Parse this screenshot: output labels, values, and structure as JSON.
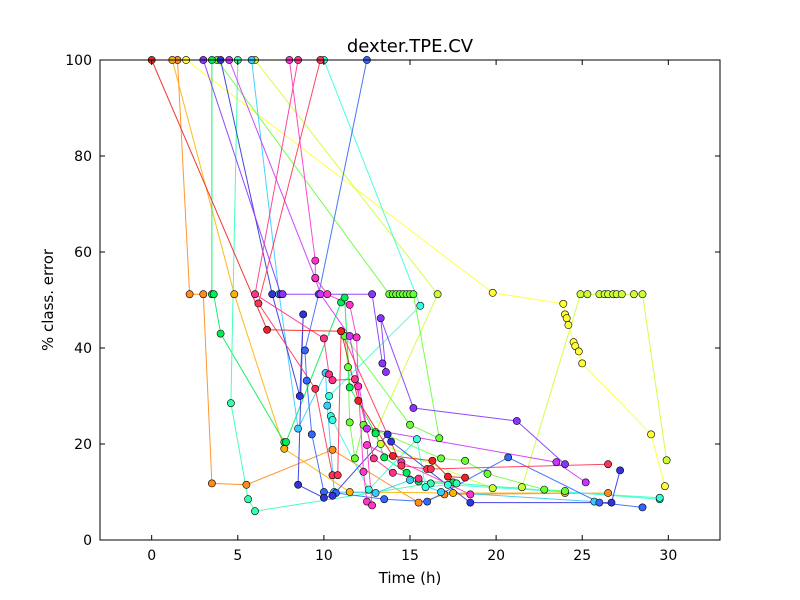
{
  "chart_data": {
    "type": "scatter",
    "title": "dexter.TPE.CV",
    "xlabel": "Time (h)",
    "ylabel": "% class. error",
    "xlim": [
      -3,
      33
    ],
    "ylim": [
      0,
      100
    ],
    "xticks": [
      0,
      5,
      10,
      15,
      20,
      25,
      30
    ],
    "yticks": [
      0,
      20,
      40,
      60,
      80,
      100
    ],
    "grid": false,
    "legend": "none",
    "marker": "circle",
    "series": [
      {
        "color": "#ff8c1a",
        "points": [
          [
            1.5,
            100
          ],
          [
            2.2,
            51.2
          ],
          [
            3.0,
            51.2
          ],
          [
            3.5,
            11.8
          ],
          [
            5.5,
            11.5
          ],
          [
            10.5,
            18.8
          ],
          [
            15.5,
            7.8
          ],
          [
            17.0,
            9.5
          ],
          [
            26.5,
            9.8
          ]
        ]
      },
      {
        "color": "#ffb000",
        "points": [
          [
            1.2,
            100
          ],
          [
            4.8,
            51.2
          ],
          [
            7.7,
            19.0
          ],
          [
            11.5,
            10.0
          ],
          [
            17.5,
            9.8
          ],
          [
            24.0,
            9.8
          ]
        ]
      },
      {
        "color": "#ffff33",
        "points": [
          [
            2.0,
            100
          ],
          [
            19.8,
            51.5
          ],
          [
            23.9,
            49.2
          ],
          [
            24.0,
            47.0
          ],
          [
            24.1,
            46.2
          ],
          [
            24.2,
            44.8
          ],
          [
            24.5,
            41.2
          ],
          [
            24.6,
            40.4
          ],
          [
            24.8,
            39.3
          ],
          [
            25.0,
            36.8
          ],
          [
            29.0,
            22.0
          ],
          [
            29.8,
            11.2
          ]
        ]
      },
      {
        "color": "#ccff33",
        "points": [
          [
            6.0,
            100
          ],
          [
            16.6,
            51.2
          ],
          [
            13.0,
            22.5
          ],
          [
            13.3,
            20.0
          ],
          [
            19.8,
            10.8
          ],
          [
            21.5,
            11.0
          ],
          [
            24.9,
            51.2
          ],
          [
            25.3,
            51.2
          ],
          [
            26.0,
            51.2
          ],
          [
            26.3,
            51.2
          ],
          [
            26.5,
            51.2
          ],
          [
            26.8,
            51.2
          ],
          [
            27.0,
            51.2
          ],
          [
            27.3,
            51.2
          ],
          [
            28.0,
            51.2
          ],
          [
            28.5,
            51.2
          ],
          [
            29.9,
            16.6
          ]
        ]
      },
      {
        "color": "#66ff33",
        "points": [
          [
            3.8,
            100
          ],
          [
            13.8,
            51.2
          ],
          [
            14.0,
            51.2
          ],
          [
            14.2,
            51.2
          ],
          [
            14.4,
            51.2
          ],
          [
            14.6,
            51.2
          ],
          [
            14.8,
            51.2
          ],
          [
            15.0,
            51.2
          ],
          [
            15.2,
            51.2
          ],
          [
            16.7,
            21.2
          ],
          [
            15.0,
            24.0
          ],
          [
            11.2,
            42.5
          ],
          [
            11.4,
            36.0
          ],
          [
            11.5,
            24.5
          ],
          [
            11.8,
            17.0
          ],
          [
            12.3,
            24.0
          ],
          [
            16.8,
            17.0
          ],
          [
            18.2,
            16.5
          ],
          [
            19.5,
            13.8
          ],
          [
            22.8,
            10.5
          ],
          [
            24.0,
            10.2
          ]
        ]
      },
      {
        "color": "#00ee55",
        "points": [
          [
            3.5,
            100
          ],
          [
            3.5,
            51.2
          ],
          [
            3.6,
            51.2
          ],
          [
            4.0,
            43.0
          ],
          [
            7.7,
            20.4
          ],
          [
            7.8,
            20.4
          ],
          [
            11.0,
            49.5
          ],
          [
            11.2,
            50.5
          ],
          [
            11.5,
            31.8
          ],
          [
            13.0,
            22.2
          ],
          [
            13.5,
            17.2
          ],
          [
            14.8,
            14.0
          ],
          [
            15.5,
            12.2
          ],
          [
            17.5,
            12.0
          ]
        ]
      },
      {
        "color": "#33ffaa",
        "points": [
          [
            5.0,
            100
          ],
          [
            4.6,
            28.5
          ],
          [
            5.6,
            8.5
          ],
          [
            6.0,
            6.0
          ],
          [
            16.2,
            11.8
          ],
          [
            17.7,
            11.8
          ],
          [
            29.5,
            8.5
          ]
        ]
      },
      {
        "color": "#33ffdd",
        "points": [
          [
            10.0,
            100
          ],
          [
            15.6,
            48.8
          ],
          [
            10.3,
            30.0
          ],
          [
            10.4,
            25.8
          ],
          [
            10.5,
            25.0
          ],
          [
            12.6,
            10.5
          ],
          [
            15.4,
            21.0
          ],
          [
            15.9,
            11.0
          ],
          [
            17.2,
            11.5
          ],
          [
            29.5,
            8.8
          ]
        ]
      },
      {
        "color": "#33ccff",
        "points": [
          [
            5.8,
            100
          ],
          [
            7.4,
            51.2
          ],
          [
            8.5,
            23.2
          ],
          [
            10.1,
            34.8
          ],
          [
            10.2,
            28.0
          ],
          [
            10.6,
            10.0
          ],
          [
            13.0,
            9.8
          ],
          [
            15.0,
            12.5
          ],
          [
            16.8,
            10.0
          ],
          [
            25.7,
            8.0
          ]
        ]
      },
      {
        "color": "#3366ff",
        "points": [
          [
            12.5,
            100
          ],
          [
            9.7,
            51.2
          ],
          [
            8.9,
            39.5
          ],
          [
            9.0,
            33.2
          ],
          [
            9.3,
            22.0
          ],
          [
            10.0,
            10.0
          ],
          [
            10.7,
            9.8
          ],
          [
            13.5,
            8.5
          ],
          [
            16.0,
            8.0
          ],
          [
            20.7,
            17.2
          ],
          [
            26.0,
            7.8
          ],
          [
            28.5,
            6.8
          ]
        ]
      },
      {
        "color": "#3333dd",
        "points": [
          [
            4.0,
            100
          ],
          [
            7.0,
            51.2
          ],
          [
            8.6,
            30.0
          ],
          [
            8.8,
            47.0
          ],
          [
            8.5,
            11.5
          ],
          [
            10.0,
            8.8
          ],
          [
            10.5,
            9.2
          ],
          [
            13.7,
            22.0
          ],
          [
            13.9,
            20.5
          ],
          [
            18.5,
            7.8
          ],
          [
            26.7,
            7.8
          ],
          [
            27.2,
            14.5
          ]
        ]
      },
      {
        "color": "#8833ff",
        "points": [
          [
            3.0,
            100
          ],
          [
            7.5,
            51.2
          ],
          [
            7.6,
            51.2
          ],
          [
            12.8,
            51.2
          ],
          [
            13.4,
            36.8
          ],
          [
            13.6,
            35.0
          ],
          [
            13.3,
            46.2
          ],
          [
            15.2,
            27.5
          ],
          [
            21.2,
            24.8
          ],
          [
            24.0,
            15.8
          ]
        ]
      },
      {
        "color": "#cc33ff",
        "points": [
          [
            4.5,
            100
          ],
          [
            9.5,
            54.5
          ],
          [
            9.8,
            51.2
          ],
          [
            11.5,
            42.5
          ],
          [
            12.5,
            23.2
          ],
          [
            23.5,
            16.2
          ],
          [
            25.2,
            12.0
          ]
        ]
      },
      {
        "color": "#ff33cc",
        "points": [
          [
            8.0,
            100
          ],
          [
            9.5,
            58.2
          ],
          [
            9.5,
            54.6
          ],
          [
            10.2,
            51.2
          ],
          [
            11.5,
            49.0
          ],
          [
            11.9,
            42.2
          ],
          [
            12.0,
            32.0
          ],
          [
            12.3,
            14.2
          ],
          [
            12.5,
            8.0
          ],
          [
            12.8,
            7.2
          ],
          [
            12.5,
            19.8
          ],
          [
            14.5,
            16.2
          ],
          [
            18.5,
            9.5
          ]
        ]
      },
      {
        "color": "#ff3388",
        "points": [
          [
            8.5,
            100
          ],
          [
            6.0,
            51.2
          ],
          [
            10.0,
            42.0
          ],
          [
            10.3,
            34.5
          ],
          [
            10.5,
            33.3
          ],
          [
            11.8,
            33.5
          ],
          [
            12.9,
            17.0
          ],
          [
            14.0,
            14.0
          ],
          [
            15.5,
            12.8
          ]
        ]
      },
      {
        "color": "#ff3355",
        "points": [
          [
            9.8,
            100
          ],
          [
            6.2,
            49.3
          ],
          [
            9.5,
            31.5
          ],
          [
            10.5,
            13.5
          ],
          [
            10.8,
            13.5
          ],
          [
            11.0,
            43.5
          ],
          [
            14.5,
            15.5
          ],
          [
            16.0,
            14.8
          ],
          [
            16.2,
            14.8
          ],
          [
            26.5,
            15.8
          ]
        ]
      },
      {
        "color": "#ee2222",
        "points": [
          [
            0.0,
            100
          ],
          [
            6.7,
            43.8
          ],
          [
            11.0,
            43.5
          ],
          [
            12.0,
            29.0
          ],
          [
            14.0,
            17.5
          ],
          [
            16.3,
            16.5
          ],
          [
            17.2,
            13.2
          ],
          [
            18.2,
            13.0
          ]
        ]
      }
    ]
  }
}
